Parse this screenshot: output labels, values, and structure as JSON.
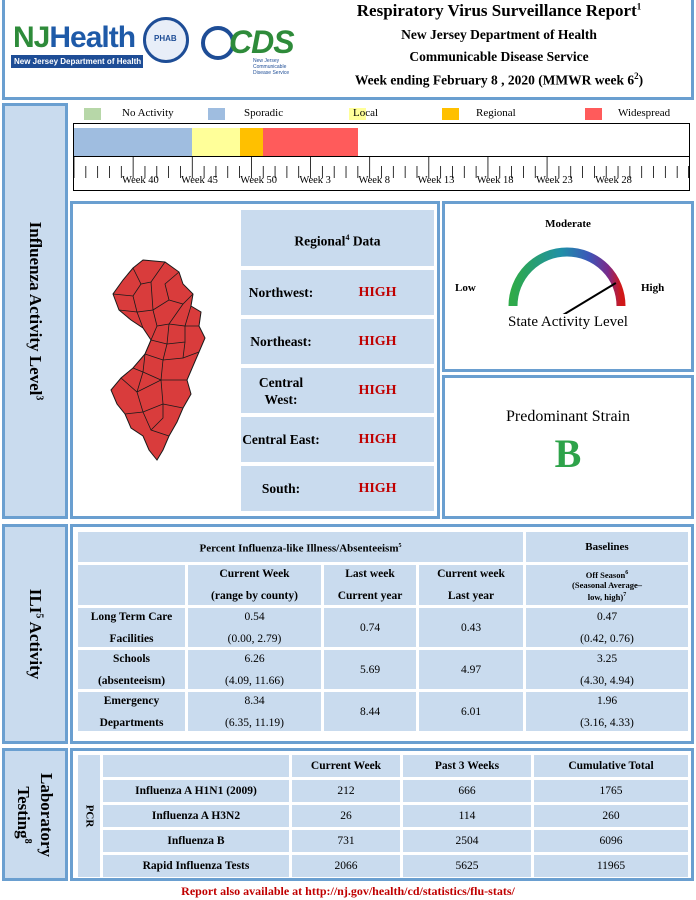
{
  "header": {
    "nj_logo_text": "NJHealth",
    "nj_logo_sub": "New Jersey Department of Health",
    "seal_text": "PHAB",
    "cds_logo_text": "CDS",
    "cds_logo_sub": "New Jersey Communicable Disease Service",
    "title": "Respiratory Virus Surveillance Report",
    "title_note": "1",
    "department": "New Jersey Department of Health",
    "service": "Communicable Disease Service",
    "week_line": "Week ending February 8 , 2020 (MMWR week 6",
    "week_note": "2",
    "week_close": ")"
  },
  "sections": {
    "influenza": "Influenza Activity Level",
    "influenza_note": "3",
    "ili": "ILI",
    "ili_note": "5",
    "ili_rest": " Activity",
    "lab_line1": "Laboratory",
    "lab_line2": "Testing",
    "lab_note": "8"
  },
  "legend": [
    {
      "label": "No Activity",
      "color": "#b7d7a8"
    },
    {
      "label": "Sporadic",
      "color": "#9fbde0"
    },
    {
      "label": "Local",
      "color": "#ffff99"
    },
    {
      "label": "Regional",
      "color": "#ffc000"
    },
    {
      "label": "Widespread",
      "color": "#ff5b5b"
    }
  ],
  "timeline": {
    "first_week": 40,
    "total_weeks": 52,
    "tick_labels": [
      "Week 40",
      "Week 45",
      "Week 50",
      "Week 3",
      "Week 8",
      "Week 13",
      "Week 18",
      "Week 23",
      "Week 28"
    ],
    "segments": [
      {
        "level": "Sporadic",
        "weeks": 10,
        "color": "#9fbde0"
      },
      {
        "level": "Local",
        "weeks": 4,
        "color": "#ffff99"
      },
      {
        "level": "Regional",
        "weeks": 2,
        "color": "#ffc000"
      },
      {
        "level": "Widespread",
        "weeks": 8,
        "color": "#ff5b5b"
      }
    ]
  },
  "regional": {
    "heading": "Regional",
    "heading_note": "4",
    "heading_rest": " Data",
    "rows": [
      {
        "region": "Northwest:",
        "level": "HIGH"
      },
      {
        "region": "Northeast:",
        "level": "HIGH"
      },
      {
        "region": "Central West:",
        "level": "HIGH"
      },
      {
        "region": "Central East:",
        "level": "HIGH"
      },
      {
        "region": "South:",
        "level": "HIGH"
      }
    ]
  },
  "map": {
    "fill_color": "#d93c3c"
  },
  "gauge": {
    "top_label": "Moderate",
    "low_label": "Low",
    "high_label": "High",
    "caption": "State Activity Level",
    "needle_fraction": 0.86
  },
  "strain": {
    "title": "Predominant Strain",
    "value": "B"
  },
  "ili_table": {
    "title": "Percent Influenza-like Illness/Absenteeism",
    "title_note": "5",
    "baseline_title": "Baselines",
    "col_current": [
      "Current Week",
      "(range by county)"
    ],
    "col_last_week": [
      "Last week",
      "Current year"
    ],
    "col_current_last_year": [
      "Current week",
      "Last year"
    ],
    "col_baseline": [
      "Off Season",
      "(Seasonal Average–",
      "low, high)"
    ],
    "col_baseline_notes": [
      "6",
      "7"
    ],
    "rows": [
      {
        "name": [
          "Long Term Care",
          "Facilities"
        ],
        "current": "0.54",
        "range": "(0.00, 2.79)",
        "last_week": "0.74",
        "last_year": "0.43",
        "baseline": "0.47",
        "baseline_range": "(0.42, 0.76)"
      },
      {
        "name": [
          "Schools",
          "(absenteeism)"
        ],
        "current": "6.26",
        "range": "(4.09, 11.66)",
        "last_week": "5.69",
        "last_year": "4.97",
        "baseline": "3.25",
        "baseline_range": "(4.30, 4.94)"
      },
      {
        "name": [
          "Emergency",
          "Departments"
        ],
        "current": "8.34",
        "range": "(6.35, 11.19)",
        "last_week": "8.44",
        "last_year": "6.01",
        "baseline": "1.96",
        "baseline_range": "(3.16, 4.33)"
      }
    ]
  },
  "lab_table": {
    "pcr_label": "PCR",
    "headers": [
      "Current Week",
      "Past 3 Weeks",
      "Cumulative Total"
    ],
    "rows": [
      {
        "name": "Influenza A H1N1 (2009)",
        "current": "212",
        "past3": "666",
        "total": "1765"
      },
      {
        "name": "Influenza A H3N2",
        "current": "26",
        "past3": "114",
        "total": "260"
      },
      {
        "name": "Influenza B",
        "current": "731",
        "past3": "2504",
        "total": "6096"
      },
      {
        "name": "Rapid Influenza Tests",
        "current": "2066",
        "past3": "5625",
        "total": "11965"
      }
    ]
  },
  "footer": "Report also available at http://nj.gov/health/cd/statistics/flu-stats/"
}
